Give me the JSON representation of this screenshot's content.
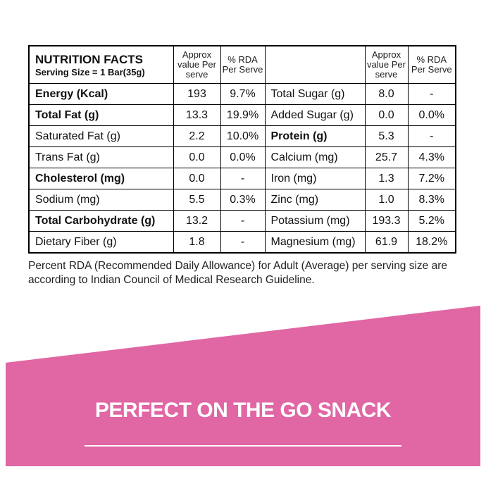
{
  "table": {
    "title": "NUTRITION FACTS",
    "serving_size": "Serving Size = 1 Bar(35g)",
    "value_header": "Approx value Per serve",
    "rda_header": "% RDA Per Serve",
    "value_header_2": "Approx value Per serve",
    "rda_header_2": "% RDA Per Serve",
    "rows": [
      {
        "left": {
          "nutrient": "Energy (Kcal)",
          "value": "193",
          "rda": "9.7%",
          "bold": true
        },
        "right": {
          "nutrient": "Total Sugar (g)",
          "value": "8.0",
          "rda": "-",
          "bold": false
        }
      },
      {
        "left": {
          "nutrient": "Total Fat (g)",
          "value": "13.3",
          "rda": "19.9%",
          "bold": true
        },
        "right": {
          "nutrient": "Added Sugar (g)",
          "value": "0.0",
          "rda": "0.0%",
          "bold": false
        }
      },
      {
        "left": {
          "nutrient": "Saturated Fat (g)",
          "value": "2.2",
          "rda": "10.0%",
          "bold": false
        },
        "right": {
          "nutrient": "Protein (g)",
          "value": "5.3",
          "rda": "-",
          "bold": true
        }
      },
      {
        "left": {
          "nutrient": "Trans Fat (g)",
          "value": "0.0",
          "rda": "0.0%",
          "bold": false
        },
        "right": {
          "nutrient": "Calcium (mg)",
          "value": "25.7",
          "rda": "4.3%",
          "bold": false
        }
      },
      {
        "left": {
          "nutrient": "Cholesterol (mg)",
          "value": "0.0",
          "rda": "-",
          "bold": true
        },
        "right": {
          "nutrient": "Iron (mg)",
          "value": "1.3",
          "rda": "7.2%",
          "bold": false
        }
      },
      {
        "left": {
          "nutrient": "Sodium (mg)",
          "value": "5.5",
          "rda": "0.3%",
          "bold": false
        },
        "right": {
          "nutrient": "Zinc (mg)",
          "value": "1.0",
          "rda": "8.3%",
          "bold": false
        }
      },
      {
        "left": {
          "nutrient": "Total Carbohydrate (g)",
          "value": "13.2",
          "rda": "-",
          "bold": true
        },
        "right": {
          "nutrient": "Potassium (mg)",
          "value": "193.3",
          "rda": "5.2%",
          "bold": false
        }
      },
      {
        "left": {
          "nutrient": "Dietary Fiber (g)",
          "value": "1.8",
          "rda": "-",
          "bold": false
        },
        "right": {
          "nutrient": "Magnesium (mg)",
          "value": "61.9",
          "rda": "18.2%",
          "bold": false
        }
      }
    ]
  },
  "footnote": "Percent RDA (Recommended Daily Allowance) for Adult (Average) per serving size are according to Indian Council of Medical Research Guideline.",
  "banner": {
    "text": "PERFECT ON THE GO SNACK"
  }
}
